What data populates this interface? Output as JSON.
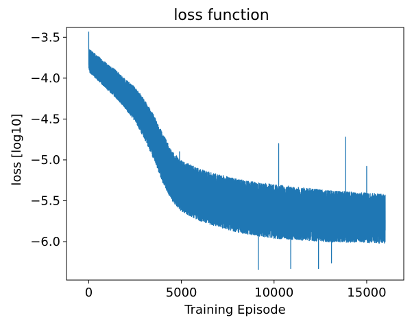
{
  "chart_data": {
    "type": "line",
    "title": "loss function",
    "xlabel": "Training Episode",
    "ylabel": "loss [log10]",
    "xlim": [
      -1200,
      17000
    ],
    "ylim": [
      -6.47,
      -3.38
    ],
    "x_ticks": [
      {
        "value": 0,
        "label": "0"
      },
      {
        "value": 5000,
        "label": "5000"
      },
      {
        "value": 10000,
        "label": "10000"
      },
      {
        "value": 15000,
        "label": "15000"
      }
    ],
    "y_ticks": [
      {
        "value": -3.5,
        "label": "−3.5"
      },
      {
        "value": -4.0,
        "label": "−4.0"
      },
      {
        "value": -4.5,
        "label": "−4.5"
      },
      {
        "value": -5.0,
        "label": "−5.0"
      },
      {
        "value": -5.5,
        "label": "−5.5"
      },
      {
        "value": -6.0,
        "label": "−6.0"
      }
    ],
    "grid": false,
    "legend": "none",
    "series": [
      {
        "color": "#1f77b4",
        "trend": {
          "x": [
            0,
            500,
            1000,
            1500,
            2000,
            2500,
            3000,
            3500,
            4000,
            4500,
            5000,
            6000,
            7000,
            8000,
            9000,
            10000,
            11000,
            12000,
            13000,
            14000,
            15000,
            16000
          ],
          "y": [
            -3.78,
            -3.88,
            -3.98,
            -4.08,
            -4.2,
            -4.32,
            -4.5,
            -4.72,
            -4.98,
            -5.2,
            -5.32,
            -5.43,
            -5.5,
            -5.56,
            -5.6,
            -5.63,
            -5.65,
            -5.67,
            -5.69,
            -5.7,
            -5.71,
            -5.72
          ]
        },
        "noise_band": {
          "x": [
            0,
            2000,
            4000,
            6000,
            10000,
            16000
          ],
          "half_width": [
            0.14,
            0.18,
            0.3,
            0.32,
            0.33,
            0.3
          ]
        },
        "peaks": [
          {
            "x": 0,
            "y": -3.43
          },
          {
            "x": 4900,
            "y": -4.9
          },
          {
            "x": 10250,
            "y": -4.8
          },
          {
            "x": 13850,
            "y": -4.72
          },
          {
            "x": 15000,
            "y": -5.08
          }
        ],
        "troughs": [
          {
            "x": 9150,
            "y": -6.34
          },
          {
            "x": 10900,
            "y": -6.33
          },
          {
            "x": 12400,
            "y": -6.33
          },
          {
            "x": 13100,
            "y": -6.26
          }
        ],
        "x_end": 16000,
        "samples": 16000
      }
    ]
  }
}
